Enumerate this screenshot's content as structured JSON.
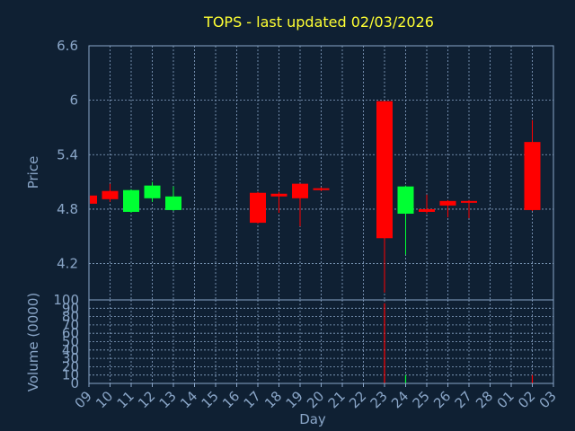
{
  "colors": {
    "background": "#0f2033",
    "axis": "#8aa6c8",
    "grid": "#8aa6c8",
    "title": "#ffff33",
    "up": "#00ff33",
    "down": "#ff0000"
  },
  "chart_data": [
    {
      "type": "candlestick",
      "title": "TOPS - last updated 02/03/2026",
      "xlabel": "Day",
      "ylabel": "Price",
      "ylim": [
        3.8,
        6.6
      ],
      "yticks": [
        "6.6",
        "6",
        "5.4",
        "4.8",
        "4.2"
      ],
      "grid": true,
      "x_tick_labels": [
        "09",
        "10",
        "11",
        "12",
        "13",
        "14",
        "15",
        "16",
        "17",
        "18",
        "19",
        "20",
        "21",
        "22",
        "23",
        "24",
        "25",
        "26",
        "27",
        "28",
        "01",
        "02",
        "03"
      ],
      "candles": [
        {
          "day": "09",
          "open": 4.95,
          "close": 4.86,
          "high": 4.95,
          "low": 4.86
        },
        {
          "day": "10",
          "open": 5.0,
          "close": 4.91,
          "high": 5.08,
          "low": 4.88
        },
        {
          "day": "11",
          "open": 4.77,
          "close": 5.01,
          "high": 5.02,
          "low": 4.76
        },
        {
          "day": "12",
          "open": 4.92,
          "close": 5.06,
          "high": 5.1,
          "low": 4.88
        },
        {
          "day": "13",
          "open": 4.79,
          "close": 4.94,
          "high": 5.05,
          "low": 4.78
        },
        {
          "day": "17",
          "open": 4.98,
          "close": 4.65,
          "high": 4.99,
          "low": 4.64
        },
        {
          "day": "18",
          "open": 4.97,
          "close": 4.94,
          "high": 4.99,
          "low": 4.76
        },
        {
          "day": "19",
          "open": 5.08,
          "close": 4.92,
          "high": 5.08,
          "low": 4.61
        },
        {
          "day": "20",
          "open": 5.03,
          "close": 5.01,
          "high": 5.04,
          "low": 5.0
        },
        {
          "day": "23",
          "open": 5.99,
          "close": 4.48,
          "high": 5.99,
          "low": 3.88
        },
        {
          "day": "24",
          "open": 4.75,
          "close": 5.05,
          "high": 5.06,
          "low": 4.3
        },
        {
          "day": "25",
          "open": 4.8,
          "close": 4.77,
          "high": 4.96,
          "low": 4.75
        },
        {
          "day": "26",
          "open": 4.89,
          "close": 4.84,
          "high": 4.9,
          "low": 4.71
        },
        {
          "day": "27",
          "open": 4.89,
          "close": 4.87,
          "high": 4.9,
          "low": 4.7
        },
        {
          "day": "02",
          "open": 5.54,
          "close": 4.79,
          "high": 5.78,
          "low": 4.78
        }
      ]
    },
    {
      "type": "bar",
      "ylabel": "Volume (0000)",
      "ylim": [
        0,
        100
      ],
      "yticks": [
        "100",
        "90",
        "80",
        "70",
        "60",
        "50",
        "40",
        "30",
        "20",
        "10",
        "0"
      ],
      "grid": true,
      "bars": [
        {
          "day": "23",
          "value": 96,
          "direction": "down"
        },
        {
          "day": "24",
          "value": 10,
          "direction": "up"
        },
        {
          "day": "02",
          "value": 10,
          "direction": "down"
        }
      ]
    }
  ]
}
